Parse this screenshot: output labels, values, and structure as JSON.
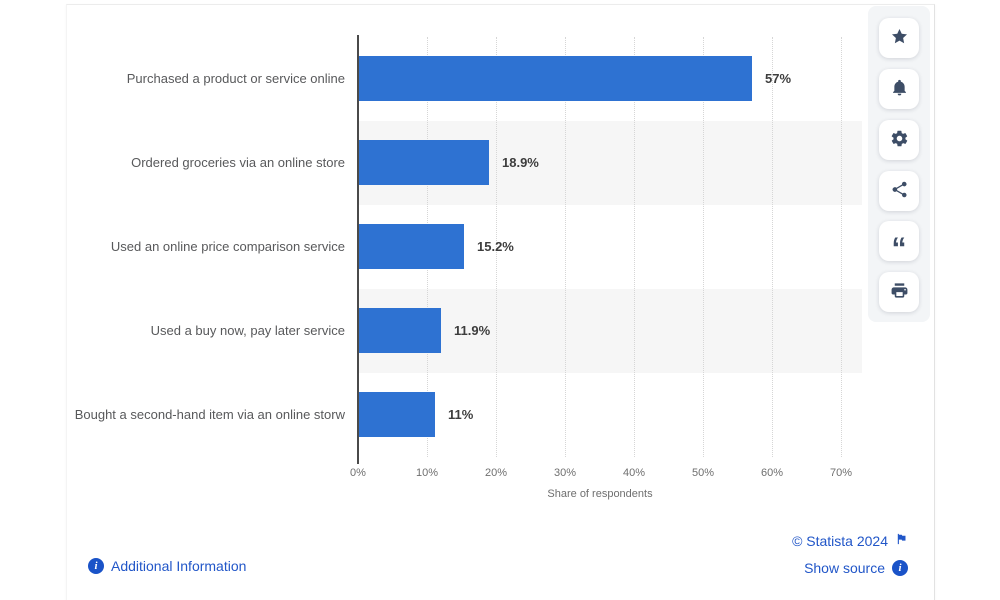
{
  "chart_data": {
    "type": "bar",
    "orientation": "horizontal",
    "title": "",
    "categories": [
      "Purchased a product or service online",
      "Ordered groceries via an online store",
      "Used an online price comparison service",
      "Used a buy now, pay later service",
      "Bought a second-hand item via an online storw"
    ],
    "values": [
      57,
      18.9,
      15.2,
      11.9,
      11
    ],
    "value_labels": [
      "57%",
      "18.9%",
      "15.2%",
      "11.9%",
      "11%"
    ],
    "xlabel": "Share of respondents",
    "x_ticks": [
      "0%",
      "10%",
      "20%",
      "30%",
      "40%",
      "50%",
      "60%",
      "70%"
    ],
    "xlim": [
      0,
      70
    ],
    "grid": "vertical-dotted",
    "legend": "none",
    "bar_color": "#2e72d2",
    "band_color": "#f6f6f6"
  },
  "toolbar": {
    "icons": [
      {
        "name": "favorite-star-icon"
      },
      {
        "name": "notification-bell-icon"
      },
      {
        "name": "settings-gear-icon"
      },
      {
        "name": "share-icon"
      },
      {
        "name": "citation-quote-icon"
      },
      {
        "name": "print-icon"
      }
    ]
  },
  "footer": {
    "additional_information_label": "Additional Information",
    "copyright_label": "© Statista 2024",
    "show_source_label": "Show source"
  },
  "colors": {
    "bar": "#2e72d2",
    "link_blue": "#2156c8",
    "info_dot": "#1a53c8",
    "icon_slate": "#3d4d66",
    "axis": "#4a4a4a",
    "band": "#f6f6f6"
  }
}
